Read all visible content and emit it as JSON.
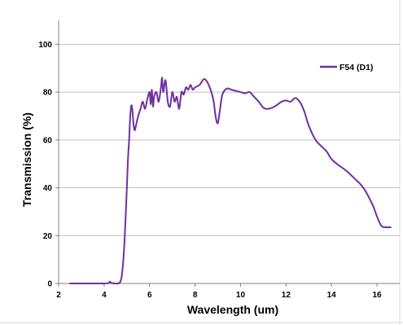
{
  "chart_data": {
    "type": "line",
    "title": "",
    "xlabel": "Wavelength (um)",
    "ylabel": "Transmission (%)",
    "xlim": [
      2,
      17
    ],
    "ylim": [
      0,
      110
    ],
    "xticks": [
      2,
      4,
      6,
      8,
      10,
      12,
      14,
      16
    ],
    "yticks": [
      0,
      20,
      40,
      60,
      80,
      100
    ],
    "x_tick_labels": [
      "2",
      "4",
      "6",
      "8",
      "10",
      "12",
      "14",
      "16"
    ],
    "y_tick_labels": [
      "0",
      "20",
      "40",
      "60",
      "80",
      "100"
    ],
    "grid": "horizontal",
    "legend_position": "top-right",
    "series": [
      {
        "name": "F54 (D1)",
        "color": "#7030a0",
        "x": [
          2.5,
          3.0,
          3.5,
          4.0,
          4.2,
          4.25,
          4.3,
          4.5,
          4.7,
          4.8,
          4.9,
          5.0,
          5.05,
          5.1,
          5.15,
          5.2,
          5.25,
          5.3,
          5.35,
          5.4,
          5.5,
          5.6,
          5.7,
          5.8,
          5.9,
          6.0,
          6.05,
          6.1,
          6.15,
          6.2,
          6.3,
          6.4,
          6.5,
          6.55,
          6.6,
          6.7,
          6.8,
          6.9,
          7.0,
          7.1,
          7.2,
          7.3,
          7.4,
          7.5,
          7.6,
          7.7,
          7.8,
          7.9,
          8.0,
          8.2,
          8.4,
          8.6,
          8.8,
          8.9,
          9.0,
          9.1,
          9.2,
          9.4,
          9.6,
          9.8,
          10.0,
          10.2,
          10.4,
          10.6,
          10.8,
          11.0,
          11.2,
          11.5,
          11.8,
          12.0,
          12.2,
          12.4,
          12.6,
          12.8,
          13.0,
          13.3,
          13.6,
          13.8,
          14.0,
          14.3,
          14.6,
          15.0,
          15.4,
          15.8,
          16.0,
          16.2,
          16.4,
          16.6
        ],
        "y": [
          0.0,
          0.0,
          0.0,
          0.0,
          0.2,
          0.8,
          0.3,
          0.0,
          0.5,
          5.0,
          18.0,
          40.0,
          52.0,
          60.0,
          70.0,
          74.5,
          72.0,
          66.0,
          64.0,
          66.0,
          70.0,
          73.0,
          76.0,
          73.0,
          77.0,
          80.0,
          75.0,
          81.0,
          74.0,
          78.0,
          80.0,
          76.0,
          82.0,
          86.0,
          80.0,
          85.0,
          76.0,
          74.0,
          80.0,
          76.0,
          78.0,
          73.0,
          80.0,
          79.0,
          82.0,
          81.0,
          83.0,
          81.0,
          82.0,
          83.0,
          85.5,
          83.0,
          77.0,
          70.0,
          67.0,
          73.0,
          79.0,
          81.5,
          81.0,
          80.5,
          80.0,
          79.5,
          80.0,
          78.0,
          76.0,
          73.5,
          73.0,
          74.0,
          76.0,
          76.5,
          76.0,
          77.5,
          76.0,
          72.0,
          66.0,
          60.0,
          57.0,
          55.0,
          52.0,
          49.5,
          47.5,
          44.0,
          40.0,
          33.0,
          28.0,
          24.0,
          23.5,
          23.5
        ]
      }
    ]
  }
}
